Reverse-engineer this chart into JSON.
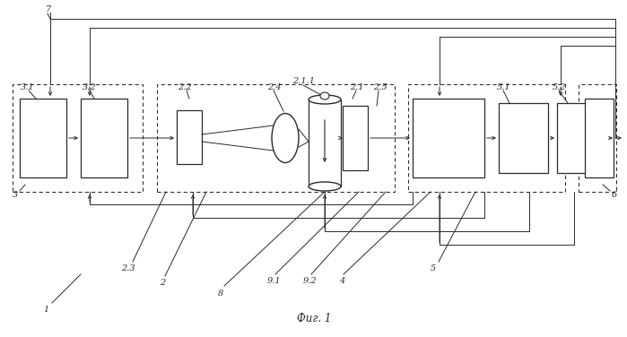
{
  "title": "Фиг. 1",
  "bg_color": "#ffffff",
  "fig_width": 6.99,
  "fig_height": 3.76,
  "lc": "#2a2a2a",
  "dpi": 100
}
